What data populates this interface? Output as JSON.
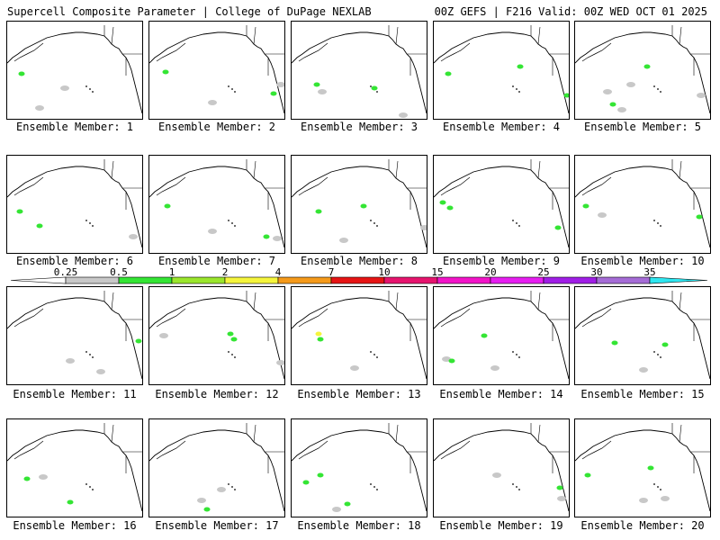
{
  "header": {
    "title_left": "Supercell Composite Parameter | College of DuPage NEXLAB",
    "title_right": "00Z GEFS | F216 Valid: 00Z WED OCT 01 2025"
  },
  "panels": [
    {
      "label": "Ensemble Member: 1"
    },
    {
      "label": "Ensemble Member: 2"
    },
    {
      "label": "Ensemble Member: 3"
    },
    {
      "label": "Ensemble Member: 4"
    },
    {
      "label": "Ensemble Member: 5"
    },
    {
      "label": "Ensemble Member: 6"
    },
    {
      "label": "Ensemble Member: 7"
    },
    {
      "label": "Ensemble Member: 8"
    },
    {
      "label": "Ensemble Member: 9"
    },
    {
      "label": "Ensemble Member: 10"
    },
    {
      "label": "Ensemble Member: 11"
    },
    {
      "label": "Ensemble Member: 12"
    },
    {
      "label": "Ensemble Member: 13"
    },
    {
      "label": "Ensemble Member: 14"
    },
    {
      "label": "Ensemble Member: 15"
    },
    {
      "label": "Ensemble Member: 16"
    },
    {
      "label": "Ensemble Member: 17"
    },
    {
      "label": "Ensemble Member: 18"
    },
    {
      "label": "Ensemble Member: 19"
    },
    {
      "label": "Ensemble Member: 20"
    }
  ],
  "colorbar": {
    "ticks": [
      "0.25",
      "0.5",
      "1",
      "2",
      "4",
      "7",
      "10",
      "15",
      "20",
      "25",
      "30",
      "35"
    ],
    "colors": [
      "#c8c8c8",
      "#34e534",
      "#9ae62c",
      "#f5f53c",
      "#f59a1a",
      "#e61414",
      "#e6146e",
      "#f214c8",
      "#e61ef0",
      "#a01ee6",
      "#a56cd6"
    ],
    "arrow_left_color": "#ffffff",
    "arrow_right_color": "#2ee6f0"
  }
}
